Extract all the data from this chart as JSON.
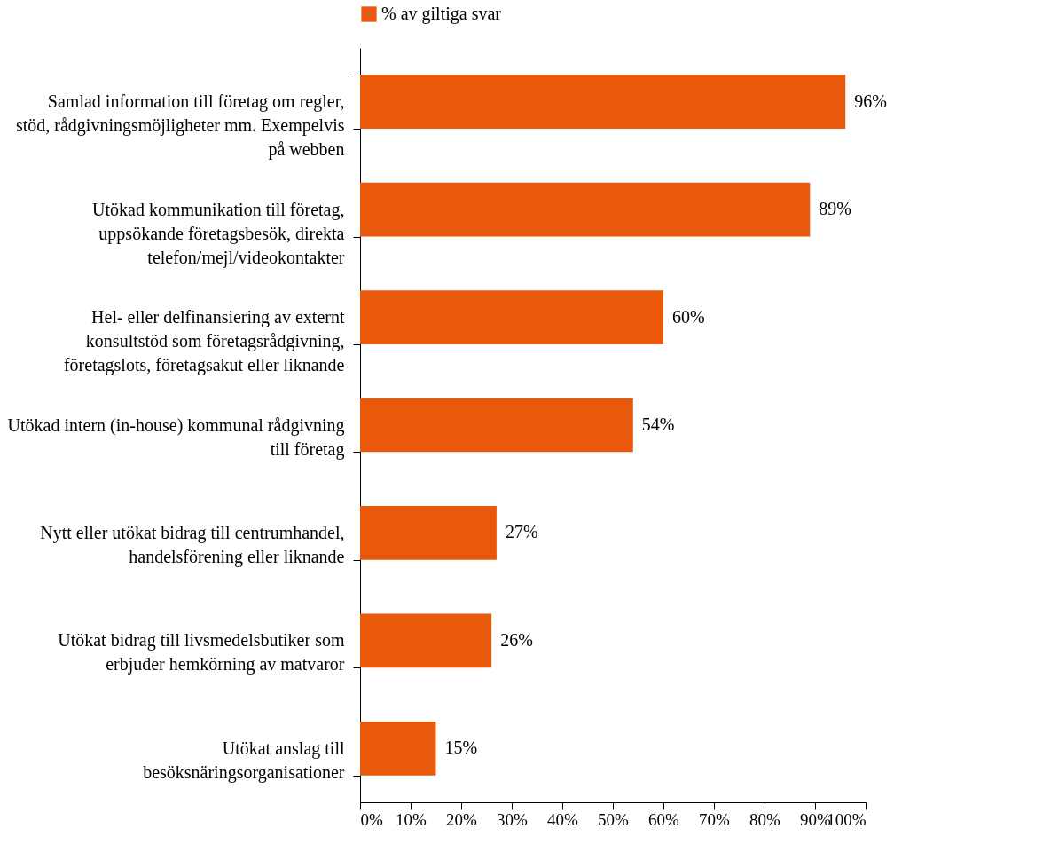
{
  "chart_data": {
    "type": "bar",
    "orientation": "horizontal",
    "legend": "top",
    "categories": [
      "Samlad information till företag om regler, stöd, rådgivningsmöjligheter mm. Exempelvis på webben",
      "Utökad kommunikation till företag, uppsökande företagsbesök, direkta telefon/mejl/videokontakter",
      "Hel- eller delfinansiering av externt konsultstöd som företagsrådgivning, företagslots, företagsakut eller liknande",
      "Utökad intern (in-house) kommunal rådgivning till företag",
      "Nytt eller utökat bidrag till centrumhandel, handelsförening eller liknande",
      "Utökat bidrag till livsmedelsbutiker som erbjuder hemkörning av matvaror",
      "Utökat anslag till besöksnäringsorganisationer"
    ],
    "series": [
      {
        "name": "% av giltiga svar",
        "color": "#e8590c",
        "values": [
          96,
          89,
          60,
          54,
          27,
          26,
          15
        ],
        "value_labels": [
          "96%",
          "89%",
          "60%",
          "54%",
          "27%",
          "26%",
          "15%"
        ]
      }
    ],
    "xlim": [
      0,
      100
    ],
    "xticks": [
      {
        "value": 0,
        "label": "0%"
      },
      {
        "value": 10,
        "label": "10%"
      },
      {
        "value": 20,
        "label": "20%"
      },
      {
        "value": 30,
        "label": "30%"
      },
      {
        "value": 40,
        "label": "40%"
      },
      {
        "value": 50,
        "label": "50%"
      },
      {
        "value": 60,
        "label": "60%"
      },
      {
        "value": 70,
        "label": "70%"
      },
      {
        "value": 80,
        "label": "80%"
      },
      {
        "value": 90,
        "label": "90%"
      },
      {
        "value": 100,
        "label": "100%"
      }
    ]
  }
}
